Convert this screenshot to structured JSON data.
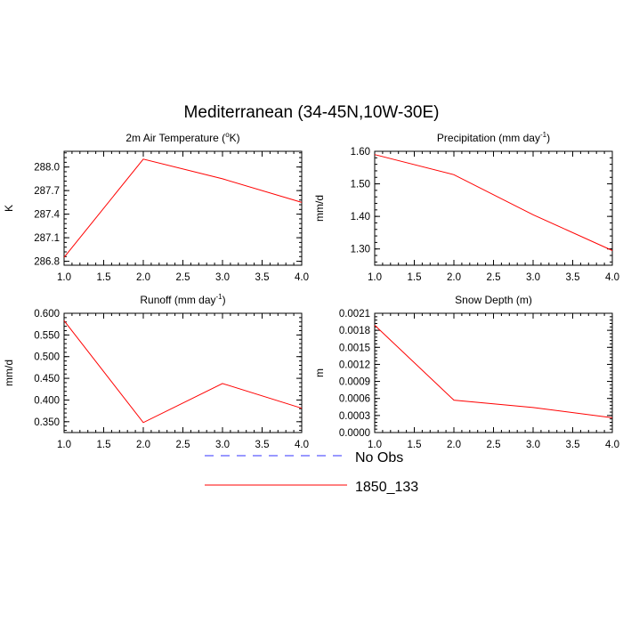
{
  "figure_title": "Mediterranean (34-45N,10W-30E)",
  "legend": {
    "entries": [
      {
        "label": "No Obs",
        "color": "#3333ff",
        "dashed": true
      },
      {
        "label": "1850_133",
        "color": "#ff0000",
        "dashed": false
      }
    ]
  },
  "colors": {
    "series": "#ff0000",
    "obs": "#3333ff",
    "axis": "#000000"
  },
  "chart_data": [
    {
      "type": "line",
      "title": "2m Air Temperature (",
      "title_sup": "o",
      "title_end": "K)",
      "ylabel": "K",
      "xlabel": "",
      "x": [
        1.0,
        2.0,
        3.0,
        4.0
      ],
      "series": [
        {
          "name": "1850_133",
          "values": [
            286.85,
            288.1,
            287.85,
            287.55
          ]
        }
      ],
      "xlim": [
        1.0,
        4.0
      ],
      "ylim": [
        286.75,
        288.2
      ],
      "xticks": [
        "1.0",
        "1.5",
        "2.0",
        "2.5",
        "3.0",
        "3.5",
        "4.0"
      ],
      "yticks": [
        286.8,
        287.1,
        287.4,
        287.7,
        288.0
      ],
      "ytick_labels": [
        "286.8",
        "287.1",
        "287.4",
        "287.7",
        "288.0"
      ]
    },
    {
      "type": "line",
      "title": "Precipitation (mm day",
      "title_sup": "-1",
      "title_end": ")",
      "ylabel": "mm/d",
      "xlabel": "",
      "x": [
        1.0,
        2.0,
        3.0,
        4.0
      ],
      "series": [
        {
          "name": "1850_133",
          "values": [
            1.59,
            1.528,
            1.405,
            1.295
          ]
        }
      ],
      "xlim": [
        1.0,
        4.0
      ],
      "ylim": [
        1.25,
        1.6
      ],
      "xticks": [
        "1.0",
        "1.5",
        "2.0",
        "2.5",
        "3.0",
        "3.5",
        "4.0"
      ],
      "yticks": [
        1.3,
        1.4,
        1.5,
        1.6
      ],
      "ytick_labels": [
        "1.30",
        "1.40",
        "1.50",
        "1.60"
      ]
    },
    {
      "type": "line",
      "title": "Runoff (mm day",
      "title_sup": "-1",
      "title_end": ")",
      "ylabel": "mm/d",
      "xlabel": "",
      "x": [
        1.0,
        2.0,
        3.0,
        4.0
      ],
      "series": [
        {
          "name": "1850_133",
          "values": [
            0.583,
            0.348,
            0.438,
            0.381
          ]
        }
      ],
      "xlim": [
        1.0,
        4.0
      ],
      "ylim": [
        0.325,
        0.6
      ],
      "xticks": [
        "1.0",
        "1.5",
        "2.0",
        "2.5",
        "3.0",
        "3.5",
        "4.0"
      ],
      "yticks": [
        0.35,
        0.4,
        0.45,
        0.5,
        0.55,
        0.6
      ],
      "ytick_labels": [
        "0.350",
        "0.400",
        "0.450",
        "0.500",
        "0.550",
        "0.600"
      ]
    },
    {
      "type": "line",
      "title": "Snow Depth (m)",
      "title_sup": "",
      "title_end": "",
      "ylabel": "m",
      "xlabel": "",
      "x": [
        1.0,
        2.0,
        3.0,
        4.0
      ],
      "series": [
        {
          "name": "1850_133",
          "values": [
            0.00189,
            0.00057,
            0.00044,
            0.00026
          ]
        }
      ],
      "xlim": [
        1.0,
        4.0
      ],
      "ylim": [
        0.0,
        0.0021
      ],
      "xticks": [
        "1.0",
        "1.5",
        "2.0",
        "2.5",
        "3.0",
        "3.5",
        "4.0"
      ],
      "yticks": [
        0.0,
        0.0003,
        0.0006,
        0.0009,
        0.0012,
        0.0015,
        0.0018,
        0.0021
      ],
      "ytick_labels": [
        "0.0000",
        "0.0003",
        "0.0006",
        "0.0009",
        "0.0012",
        "0.0015",
        "0.0018",
        "0.0021"
      ]
    }
  ]
}
